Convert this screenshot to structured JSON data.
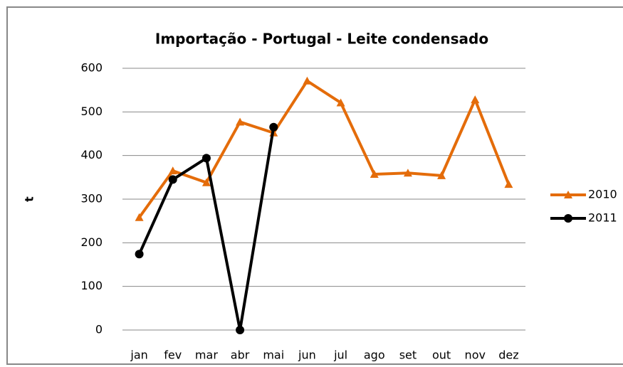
{
  "chart_data": {
    "type": "line",
    "title": "Importação - Portugal - Leite condensado",
    "y_label": "t",
    "categories": [
      "jan",
      "fev",
      "mar",
      "abr",
      "mai",
      "jun",
      "jul",
      "ago",
      "set",
      "out",
      "nov",
      "dez"
    ],
    "series": [
      {
        "name": "2010",
        "color": "#e46c0a",
        "marker": "triangle",
        "values": [
          258,
          365,
          338,
          477,
          452,
          571,
          521,
          357,
          360,
          354,
          528,
          334
        ]
      },
      {
        "name": "2011",
        "color": "#000000",
        "marker": "circle",
        "values": [
          174,
          345,
          394,
          0,
          465,
          null,
          null,
          null,
          null,
          null,
          null,
          null
        ]
      }
    ],
    "ylim": [
      0,
      600
    ],
    "yticks": [
      0,
      100,
      200,
      300,
      400,
      500,
      600
    ],
    "grid": true,
    "legend": "right"
  }
}
